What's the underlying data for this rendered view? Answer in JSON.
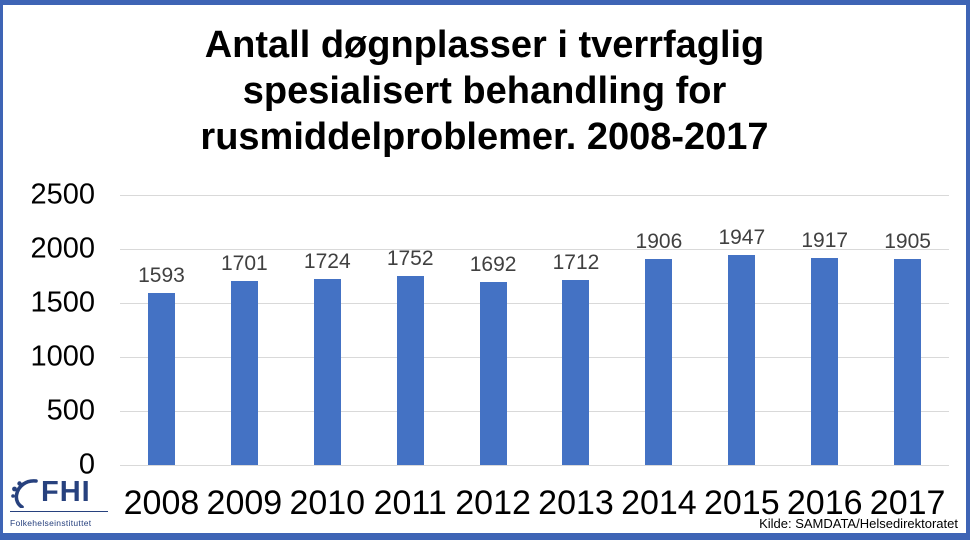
{
  "frame": {
    "border_color": "#3E64B5",
    "background": "#FFFFFF"
  },
  "title": {
    "lines": [
      "Antall døgnplasser i tverrfaglig",
      "spesialisert behandling for",
      "rusmiddelproblemer. 2008-2017"
    ]
  },
  "chart_data": {
    "type": "bar",
    "title": "Antall døgnplasser i tverrfaglig spesialisert behandling for rusmiddelproblemer. 2008-2017",
    "categories": [
      "2008",
      "2009",
      "2010",
      "2011",
      "2012",
      "2013",
      "2014",
      "2015",
      "2016",
      "2017"
    ],
    "values": [
      1593,
      1701,
      1724,
      1752,
      1692,
      1712,
      1906,
      1947,
      1917,
      1905
    ],
    "xlabel": "",
    "ylabel": "",
    "ylim": [
      0,
      2500
    ],
    "yticks": [
      0,
      500,
      1000,
      1500,
      2000,
      2500
    ],
    "grid": true,
    "legend": false,
    "bar_color": "#4472C4",
    "gridline_color": "#D9D9D9",
    "value_label_color": "#404040",
    "axis_label_color": "#000000"
  },
  "footer": {
    "source": "Kilde: SAMDATA/Helsedirektoratet",
    "logo": {
      "abbr": "FHI",
      "name": "Folkehelseinstituttet",
      "color": "#27417E"
    }
  }
}
